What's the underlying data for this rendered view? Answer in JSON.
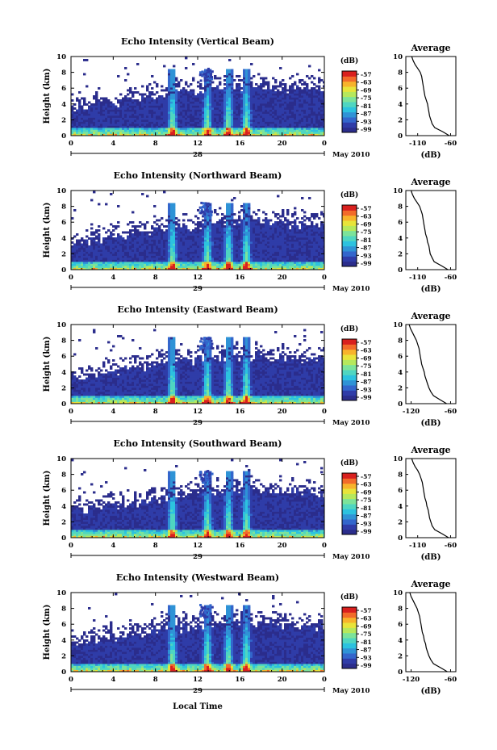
{
  "figure": {
    "xlabel": "Local Time",
    "colors": {
      "colormap": [
        "#2b2d8c",
        "#2f3ca8",
        "#3366cc",
        "#2f93d6",
        "#2cc2df",
        "#4fd6c1",
        "#7ce39a",
        "#b6e85c",
        "#e8e43a",
        "#f7b32b",
        "#f26b2a",
        "#d9201e"
      ],
      "profile_line": "#000000"
    }
  },
  "chart_data": [
    {
      "type": "heatmap",
      "title": "Echo Intensity (Vertical Beam)",
      "ylabel": "Height (km)",
      "xticks": [
        "0",
        "4",
        "8",
        "12",
        "16",
        "20",
        "0"
      ],
      "ylim": [
        0,
        10
      ],
      "yticks": [
        "0",
        "2",
        "4",
        "6",
        "8",
        "10"
      ],
      "xlim": [
        0,
        24
      ],
      "date_label": "28",
      "month_label": "May 2010",
      "colorbar": {
        "unit": "(dB)",
        "ticks": [
          "-57",
          "-63",
          "-69",
          "-75",
          "-81",
          "-87",
          "-93",
          "-99"
        ]
      },
      "echo_top_km": [
        3.6,
        3.7,
        3.9,
        4.1,
        4.3,
        4.5,
        4.7,
        4.9,
        5.1,
        5.3,
        5.5,
        5.7,
        5.8,
        5.9,
        6.0,
        6.1,
        6.2,
        6.3,
        6.3,
        6.2,
        6.1,
        6.0,
        5.9,
        5.8,
        5.7
      ],
      "convective_times_h": [
        9.5,
        12.8,
        14.8,
        16.5
      ]
    },
    {
      "type": "line",
      "title": "Average",
      "xlabel": "(dB)",
      "xticks": [
        "-110",
        "-60"
      ],
      "yticks": [
        "0",
        "2",
        "4",
        "6",
        "8",
        "10"
      ],
      "ylim": [
        0,
        10
      ],
      "height_km": [
        0,
        0.5,
        1,
        1.5,
        2,
        2.5,
        3,
        3.5,
        4,
        4.5,
        5,
        5.5,
        6,
        6.5,
        7,
        7.5,
        8,
        8.5,
        9,
        9.5,
        10
      ],
      "values_db": [
        -62,
        -72,
        -84,
        -88,
        -90,
        -92,
        -93,
        -94,
        -95,
        -97,
        -99,
        -100,
        -101,
        -102,
        -103,
        -104,
        -106,
        -110,
        -114,
        -117,
        -119
      ]
    },
    {
      "type": "heatmap",
      "title": "Echo Intensity (Northward Beam)",
      "ylabel": "Height (km)",
      "xticks": [
        "0",
        "4",
        "8",
        "12",
        "16",
        "20",
        "0"
      ],
      "ylim": [
        0,
        10
      ],
      "yticks": [
        "0",
        "2",
        "4",
        "6",
        "8",
        "10"
      ],
      "xlim": [
        0,
        24
      ],
      "date_label": "29",
      "month_label": "May 2010",
      "colorbar": {
        "unit": "(dB)",
        "ticks": [
          "-57",
          "-63",
          "-69",
          "-75",
          "-81",
          "-87",
          "-93",
          "-99"
        ]
      },
      "echo_top_km": [
        3.5,
        3.6,
        3.8,
        4.0,
        4.2,
        4.4,
        4.6,
        4.8,
        5.0,
        5.2,
        5.4,
        5.6,
        5.7,
        5.8,
        5.9,
        6.0,
        6.1,
        6.2,
        6.2,
        6.1,
        6.0,
        5.9,
        5.8,
        5.7,
        5.6
      ],
      "convective_times_h": [
        9.5,
        12.8,
        14.8,
        16.5
      ]
    },
    {
      "type": "line",
      "title": "Average",
      "xlabel": "(dB)",
      "xticks": [
        "-110",
        "-60"
      ],
      "yticks": [
        "0",
        "2",
        "4",
        "6",
        "8",
        "10"
      ],
      "ylim": [
        0,
        10
      ],
      "height_km": [
        0,
        0.5,
        1,
        1.5,
        2,
        2.5,
        3,
        3.5,
        4,
        4.5,
        5,
        5.5,
        6,
        6.5,
        7,
        7.5,
        8,
        8.5,
        9,
        9.5,
        10
      ],
      "values_db": [
        -64,
        -74,
        -85,
        -88,
        -91,
        -92,
        -93,
        -95,
        -96,
        -98,
        -99,
        -100,
        -101,
        -102,
        -103,
        -105,
        -107,
        -111,
        -115,
        -118,
        -120
      ]
    },
    {
      "type": "heatmap",
      "title": "Echo Intensity (Eastward Beam)",
      "ylabel": "Height (km)",
      "xticks": [
        "0",
        "4",
        "8",
        "12",
        "16",
        "20",
        "0"
      ],
      "ylim": [
        0,
        10
      ],
      "yticks": [
        "0",
        "2",
        "4",
        "6",
        "8",
        "10"
      ],
      "xlim": [
        0,
        24
      ],
      "date_label": "29",
      "month_label": "May 2010",
      "colorbar": {
        "unit": "(dB)",
        "ticks": [
          "-57",
          "-63",
          "-69",
          "-75",
          "-81",
          "-87",
          "-93",
          "-99"
        ]
      },
      "echo_top_km": [
        3.4,
        3.5,
        3.7,
        3.9,
        4.1,
        4.3,
        4.5,
        4.7,
        4.9,
        5.1,
        5.3,
        5.5,
        5.6,
        5.7,
        5.8,
        5.9,
        6.0,
        6.1,
        6.1,
        6.0,
        5.9,
        5.8,
        5.7,
        5.6,
        5.5
      ],
      "convective_times_h": [
        9.5,
        12.8,
        14.8,
        16.5
      ]
    },
    {
      "type": "line",
      "title": "Average",
      "xlabel": "(dB)",
      "xticks": [
        "-120",
        "-60"
      ],
      "yticks": [
        "0",
        "2",
        "4",
        "6",
        "8",
        "10"
      ],
      "ylim": [
        0,
        10
      ],
      "height_km": [
        0,
        0.5,
        1,
        1.5,
        2,
        2.5,
        3,
        3.5,
        4,
        4.5,
        5,
        5.5,
        6,
        6.5,
        7,
        7.5,
        8,
        8.5,
        9,
        9.5,
        10
      ],
      "values_db": [
        -66,
        -76,
        -86,
        -90,
        -93,
        -95,
        -97,
        -99,
        -100,
        -102,
        -104,
        -105,
        -106,
        -107,
        -108,
        -110,
        -112,
        -115,
        -118,
        -121,
        -123
      ]
    },
    {
      "type": "heatmap",
      "title": "Echo Intensity (Southward Beam)",
      "ylabel": "Height (km)",
      "xticks": [
        "0",
        "4",
        "8",
        "12",
        "16",
        "20",
        "0"
      ],
      "ylim": [
        0,
        10
      ],
      "yticks": [
        "0",
        "2",
        "4",
        "6",
        "8",
        "10"
      ],
      "xlim": [
        0,
        24
      ],
      "date_label": "29",
      "month_label": "May 2010",
      "colorbar": {
        "unit": "(dB)",
        "ticks": [
          "-57",
          "-63",
          "-69",
          "-75",
          "-81",
          "-87",
          "-93",
          "-99"
        ]
      },
      "echo_top_km": [
        3.5,
        3.6,
        3.8,
        4.0,
        4.2,
        4.4,
        4.6,
        4.8,
        5.0,
        5.2,
        5.4,
        5.6,
        5.7,
        5.8,
        5.9,
        6.0,
        6.1,
        6.2,
        6.2,
        6.1,
        6.0,
        5.9,
        5.8,
        5.7,
        5.6
      ],
      "convective_times_h": [
        9.5,
        12.8,
        14.8,
        16.5
      ]
    },
    {
      "type": "line",
      "title": "Average",
      "xlabel": "(dB)",
      "xticks": [
        "-110",
        "-60"
      ],
      "yticks": [
        "0",
        "2",
        "4",
        "6",
        "8",
        "10"
      ],
      "ylim": [
        0,
        10
      ],
      "height_km": [
        0,
        0.5,
        1,
        1.5,
        2,
        2.5,
        3,
        3.5,
        4,
        4.5,
        5,
        5.5,
        6,
        6.5,
        7,
        7.5,
        8,
        8.5,
        9,
        9.5,
        10
      ],
      "values_db": [
        -63,
        -73,
        -84,
        -88,
        -90,
        -92,
        -93,
        -94,
        -96,
        -97,
        -99,
        -100,
        -101,
        -102,
        -103,
        -105,
        -107,
        -110,
        -114,
        -117,
        -119
      ]
    },
    {
      "type": "heatmap",
      "title": "Echo Intensity (Westward Beam)",
      "ylabel": "Height (km)",
      "xticks": [
        "0",
        "4",
        "8",
        "12",
        "16",
        "20",
        "0"
      ],
      "ylim": [
        0,
        10
      ],
      "yticks": [
        "0",
        "2",
        "4",
        "6",
        "8",
        "10"
      ],
      "xlim": [
        0,
        24
      ],
      "date_label": "29",
      "month_label": "May 2010",
      "colorbar": {
        "unit": "(dB)",
        "ticks": [
          "-57",
          "-63",
          "-69",
          "-75",
          "-81",
          "-87",
          "-93",
          "-99"
        ]
      },
      "echo_top_km": [
        3.6,
        3.7,
        3.9,
        4.1,
        4.3,
        4.5,
        4.7,
        4.9,
        5.1,
        5.3,
        5.5,
        5.7,
        5.8,
        5.9,
        6.0,
        6.1,
        6.2,
        6.3,
        6.3,
        6.2,
        6.1,
        6.0,
        5.9,
        5.8,
        5.7
      ],
      "convective_times_h": [
        9.5,
        12.8,
        14.8,
        16.5
      ]
    },
    {
      "type": "line",
      "title": "Average",
      "xlabel": "(dB)",
      "xticks": [
        "-120",
        "-60"
      ],
      "yticks": [
        "0",
        "2",
        "4",
        "6",
        "8",
        "10"
      ],
      "ylim": [
        0,
        10
      ],
      "height_km": [
        0,
        0.5,
        1,
        1.5,
        2,
        2.5,
        3,
        3.5,
        4,
        4.5,
        5,
        5.5,
        6,
        6.5,
        7,
        7.5,
        8,
        8.5,
        9,
        9.5,
        10
      ],
      "values_db": [
        -65,
        -75,
        -86,
        -90,
        -93,
        -95,
        -97,
        -98,
        -100,
        -101,
        -103,
        -104,
        -105,
        -106,
        -107,
        -109,
        -111,
        -114,
        -117,
        -120,
        -122
      ]
    }
  ]
}
